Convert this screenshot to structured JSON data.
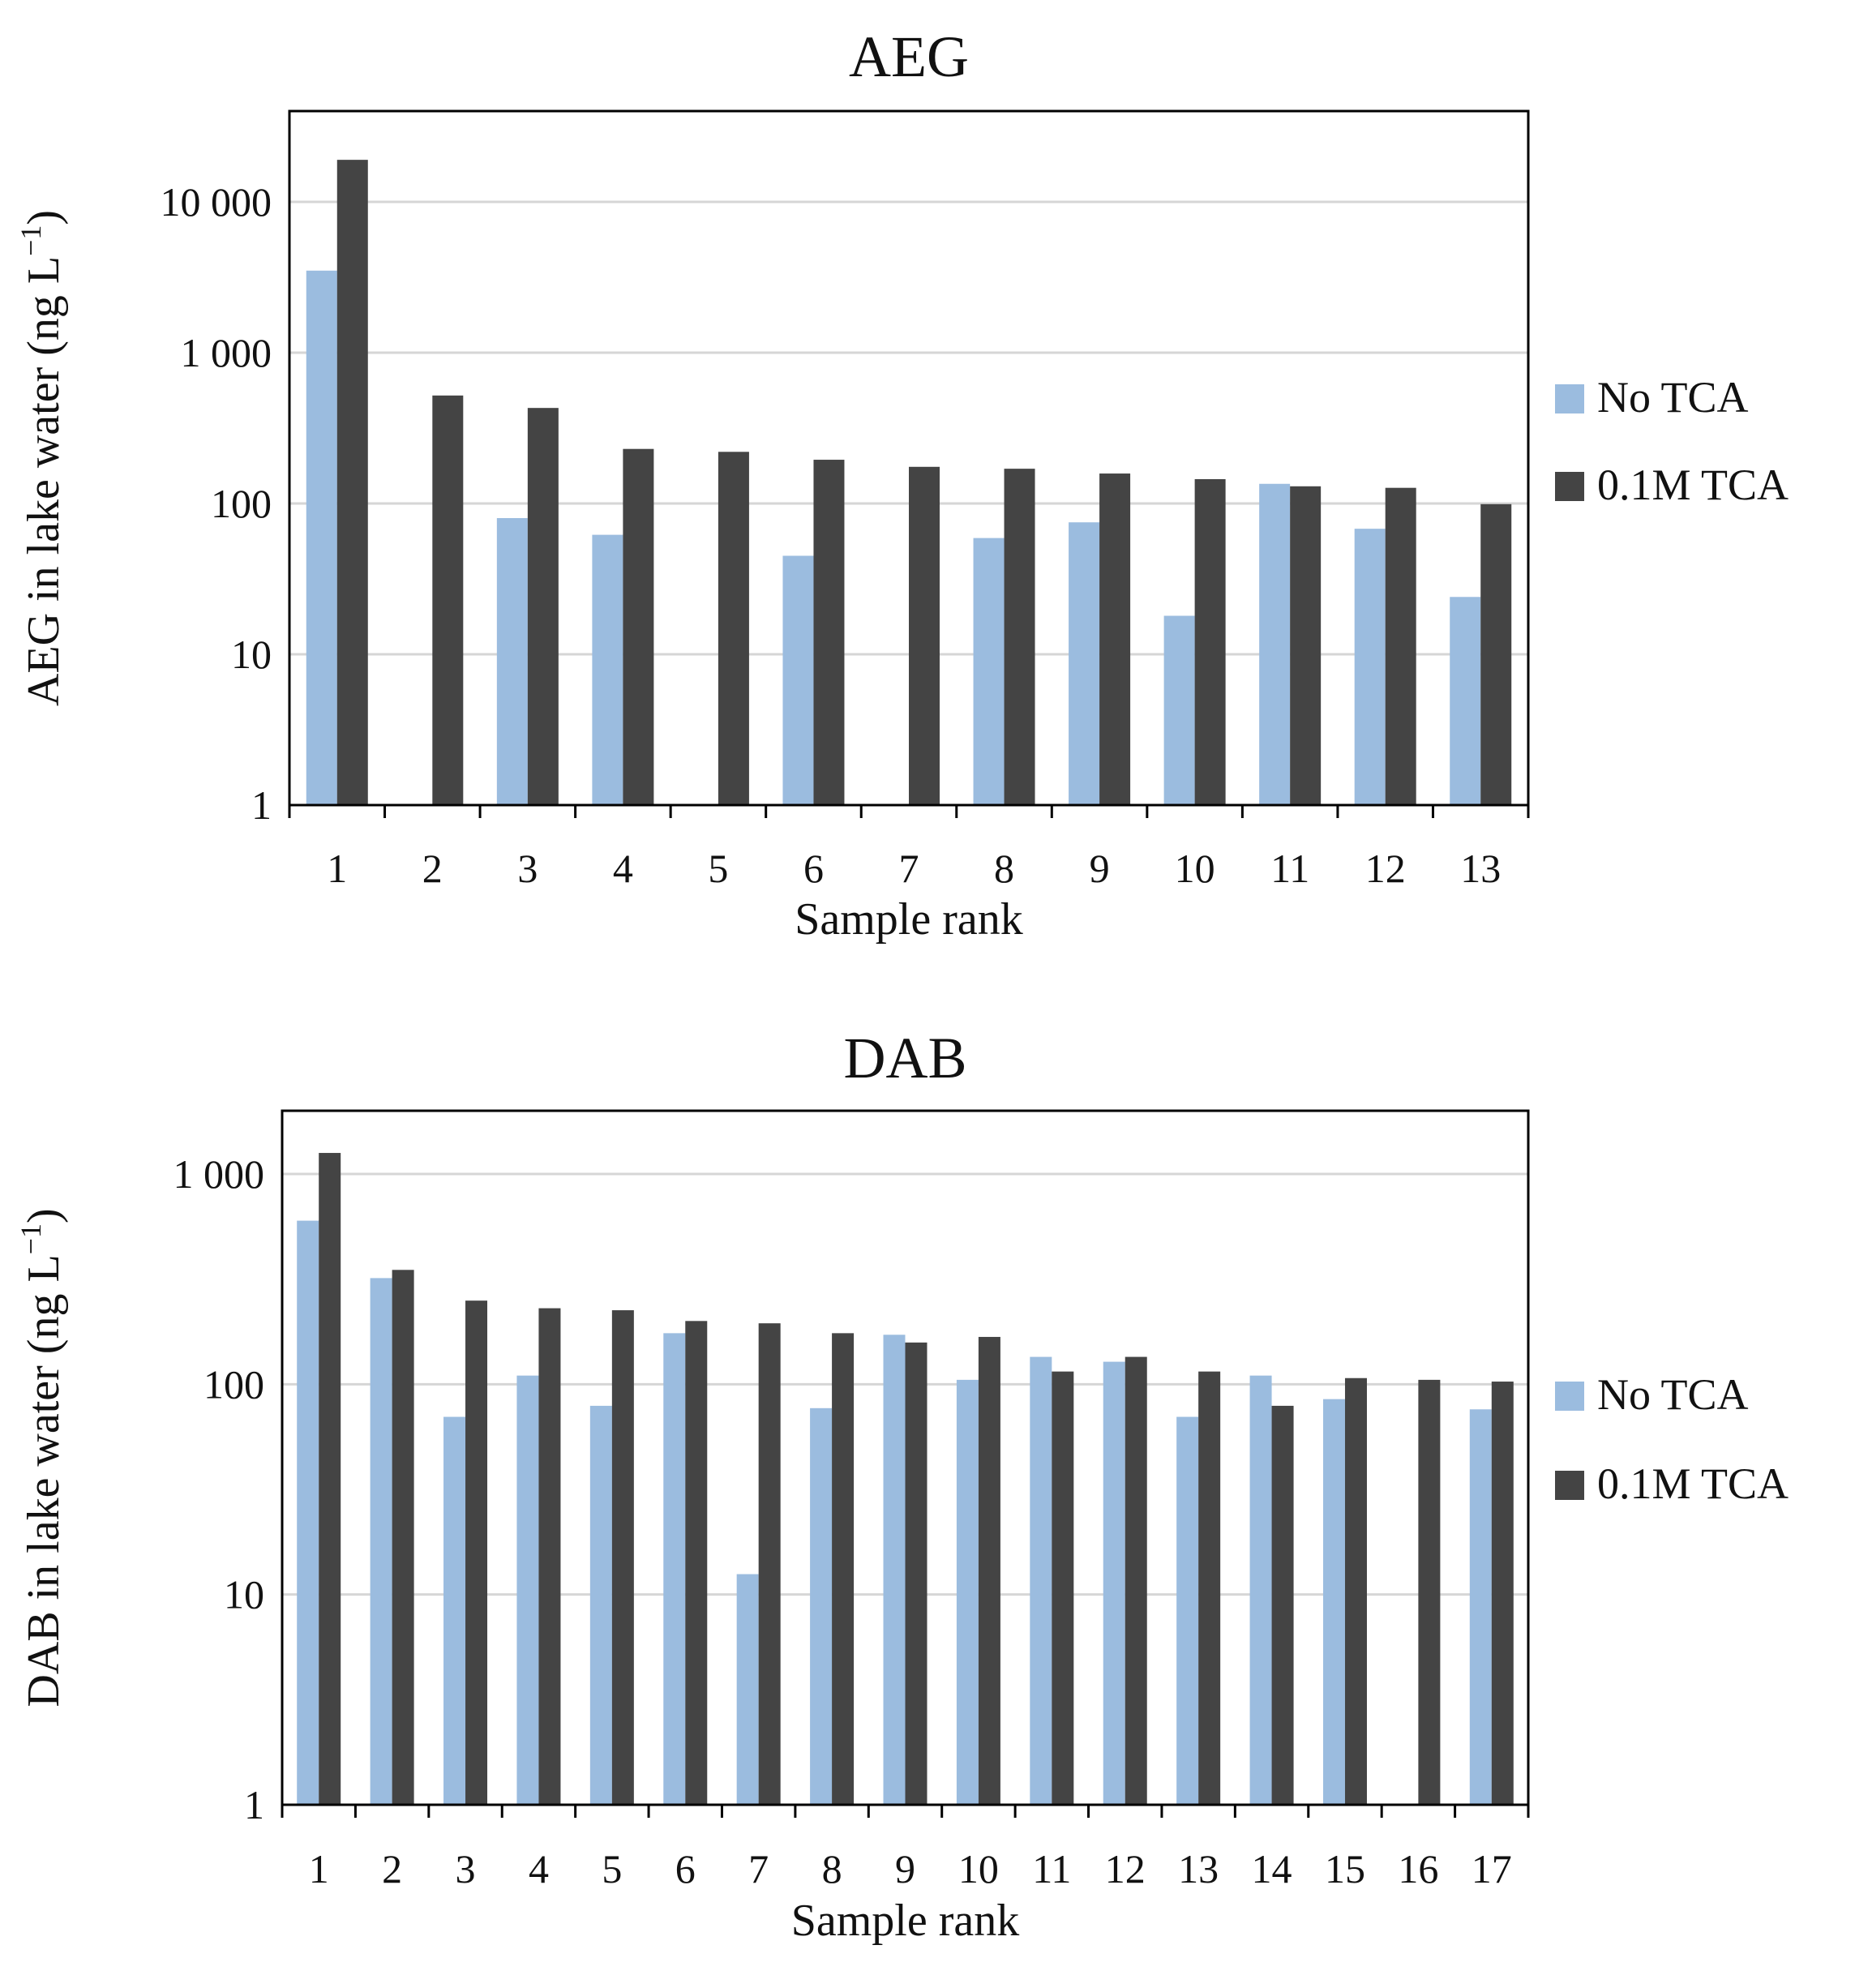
{
  "colors": {
    "no_tca": "#9bbcdf",
    "tca": "#444444",
    "grid": "#d6d6d6",
    "axis": "#000000"
  },
  "chart_data": [
    {
      "type": "bar",
      "title": "AEG",
      "xlabel": "Sample rank",
      "ylabel": "AEG in lake water (ng L",
      "ylabel_sup": "−1",
      "ylabel_end": ")",
      "yscale": "log",
      "ylim": [
        1,
        40000
      ],
      "yticks": [
        1,
        10,
        100,
        1000,
        10000
      ],
      "ytick_labels": [
        "1",
        "10",
        "100",
        "1 000",
        "10 000"
      ],
      "grid": true,
      "legend": "right",
      "categories": [
        "1",
        "2",
        "3",
        "4",
        "5",
        "6",
        "7",
        "8",
        "9",
        "10",
        "11",
        "12",
        "13"
      ],
      "series": [
        {
          "name": "No TCA",
          "values": [
            3500,
            null,
            80,
            62,
            null,
            45,
            null,
            59,
            75,
            18,
            135,
            68,
            24
          ]
        },
        {
          "name": "0.1M TCA",
          "values": [
            19000,
            520,
            430,
            230,
            220,
            195,
            175,
            170,
            158,
            145,
            130,
            127,
            99
          ]
        }
      ]
    },
    {
      "type": "bar",
      "title": "DAB",
      "xlabel": "Sample rank",
      "ylabel": "DAB in lake water (ng L",
      "ylabel_sup": "−1",
      "ylabel_end": ")",
      "yscale": "log",
      "ylim": [
        1,
        2000
      ],
      "yticks": [
        1,
        10,
        100,
        1000
      ],
      "ytick_labels": [
        "1",
        "10",
        "100",
        "1 000"
      ],
      "grid": true,
      "legend": "right",
      "categories": [
        "1",
        "2",
        "3",
        "4",
        "5",
        "6",
        "7",
        "8",
        "9",
        "10",
        "11",
        "12",
        "13",
        "14",
        "15",
        "16",
        "17"
      ],
      "series": [
        {
          "name": "No TCA",
          "values": [
            600,
            320,
            70,
            110,
            79,
            175,
            12.5,
            77,
            172,
            105,
            135,
            128,
            70,
            110,
            85,
            null,
            76
          ]
        },
        {
          "name": "0.1M TCA",
          "values": [
            1260,
            350,
            250,
            230,
            225,
            200,
            195,
            175,
            158,
            168,
            115,
            135,
            115,
            79,
            107,
            105,
            103
          ]
        }
      ]
    }
  ]
}
